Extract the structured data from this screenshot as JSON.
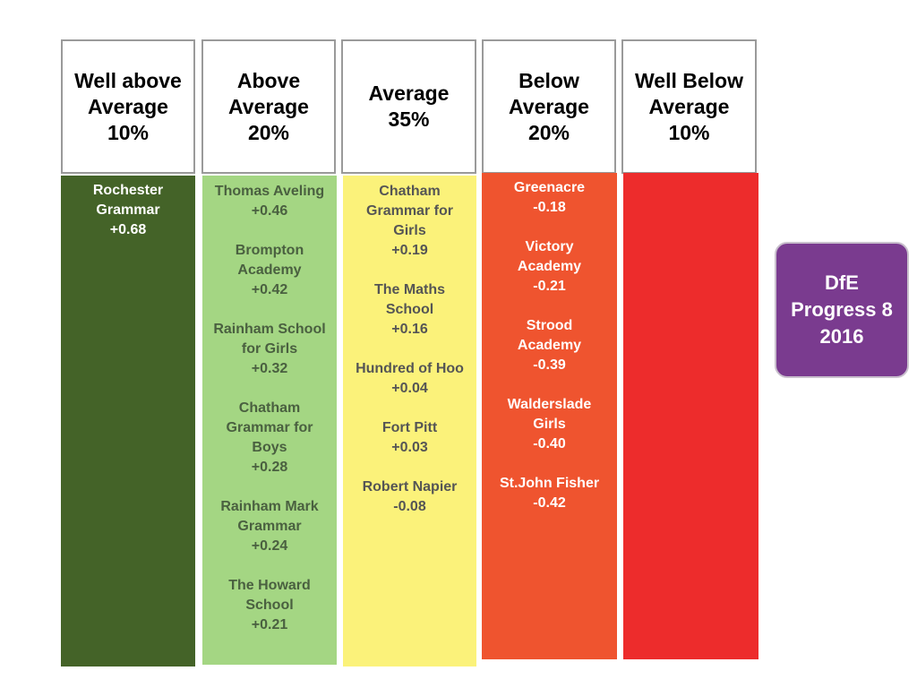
{
  "bands": [
    {
      "header": [
        "Well above",
        "Average",
        "10%"
      ],
      "entries": [
        {
          "name": [
            "Rochester",
            "Grammar"
          ],
          "score": "+0.68"
        }
      ]
    },
    {
      "header": [
        "Above",
        "Average",
        "20%"
      ],
      "entries": [
        {
          "name": [
            "Thomas Aveling"
          ],
          "score": "+0.46"
        },
        {
          "name": [
            "Brompton",
            "Academy"
          ],
          "score": "+0.42"
        },
        {
          "name": [
            "Rainham School",
            "for Girls"
          ],
          "score": "+0.32"
        },
        {
          "name": [
            "Chatham",
            "Grammar for",
            "Boys"
          ],
          "score": "+0.28"
        },
        {
          "name": [
            "Rainham Mark",
            "Grammar"
          ],
          "score": "+0.24"
        },
        {
          "name": [
            "The Howard",
            "School"
          ],
          "score": "+0.21"
        }
      ]
    },
    {
      "header": [
        "Average",
        "35%"
      ],
      "entries": [
        {
          "name": [
            "Chatham",
            "Grammar for",
            "Girls"
          ],
          "score": "+0.19"
        },
        {
          "name": [
            "The Maths",
            "School"
          ],
          "score": "+0.16"
        },
        {
          "name": [
            "Hundred of Hoo"
          ],
          "score": "+0.04"
        },
        {
          "name": [
            "Fort Pitt"
          ],
          "score": "+0.03"
        },
        {
          "name": [
            "Robert Napier"
          ],
          "score": "-0.08"
        }
      ]
    },
    {
      "header": [
        "Below",
        "Average",
        "20%"
      ],
      "entries": [
        {
          "name": [
            "Greenacre"
          ],
          "score": "-0.18"
        },
        {
          "name": [
            "Victory",
            "Academy"
          ],
          "score": "-0.21"
        },
        {
          "name": [
            "Strood",
            "Academy"
          ],
          "score": "-0.39"
        },
        {
          "name": [
            "Walderslade",
            "Girls"
          ],
          "score": "-0.40"
        },
        {
          "name": [
            "St.John Fisher"
          ],
          "score": "-0.42"
        }
      ]
    },
    {
      "header": [
        "Well Below",
        "Average",
        "10%"
      ],
      "entries": []
    }
  ],
  "badge": [
    "DfE",
    "Progress 8",
    "2016"
  ],
  "colors": {
    "band_fills": [
      "#446328",
      "#a4d683",
      "#fbf27a",
      "#ef542f",
      "#ed2c2c"
    ],
    "band_text": [
      "#ffffff",
      "#4a6040",
      "#555555",
      "#ffffff",
      "#ffffff"
    ],
    "badge": "#7a3b8f"
  }
}
